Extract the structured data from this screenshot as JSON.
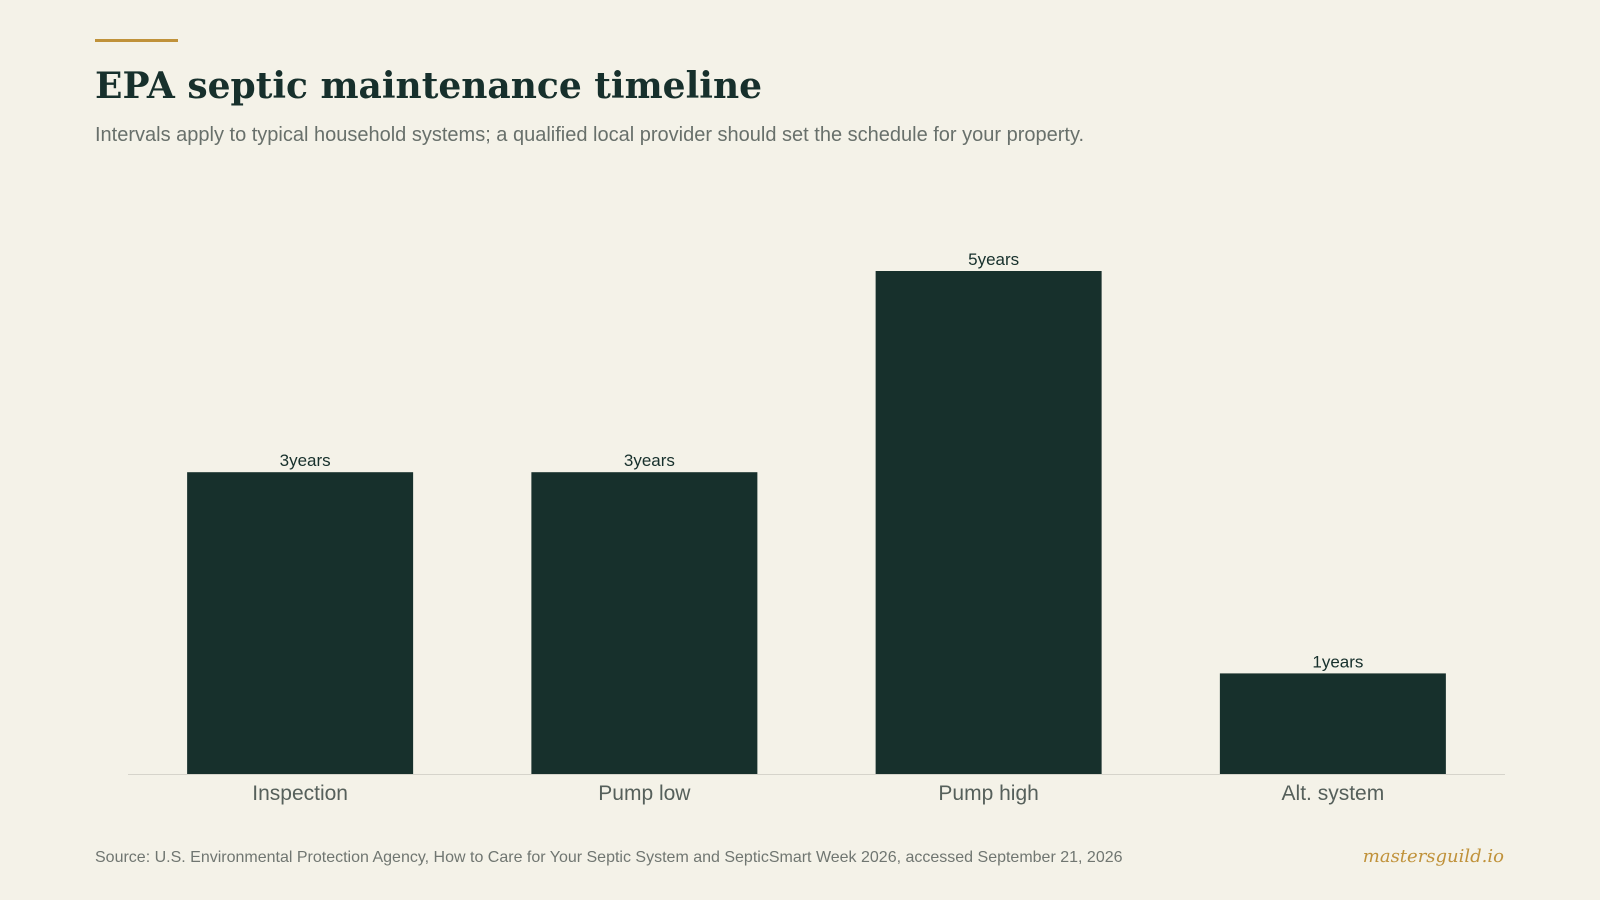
{
  "header": {
    "title": "EPA septic maintenance timeline",
    "subtitle": "Intervals apply to typical household systems; a qualified local provider should set the schedule for your property."
  },
  "footer": {
    "source": "Source: U.S. Environmental Protection Agency, How to Care for Your Septic System and SepticSmart Week 2026, accessed September 21, 2026",
    "brand": "mastersguild.io"
  },
  "colors": {
    "background": "#f4f2e8",
    "bar": "#17302c",
    "accent": "#c0923a",
    "baseline": "#d6d4cb",
    "muted_text": "#68706b"
  },
  "chart_data": {
    "type": "bar",
    "categories": [
      "Inspection",
      "Pump low",
      "Pump high",
      "Alt. system"
    ],
    "values": [
      3,
      3,
      5,
      1
    ],
    "value_suffix": "years",
    "ylim": [
      0,
      5
    ],
    "xlabel": "",
    "ylabel": "",
    "grid": false,
    "legend": "none"
  }
}
